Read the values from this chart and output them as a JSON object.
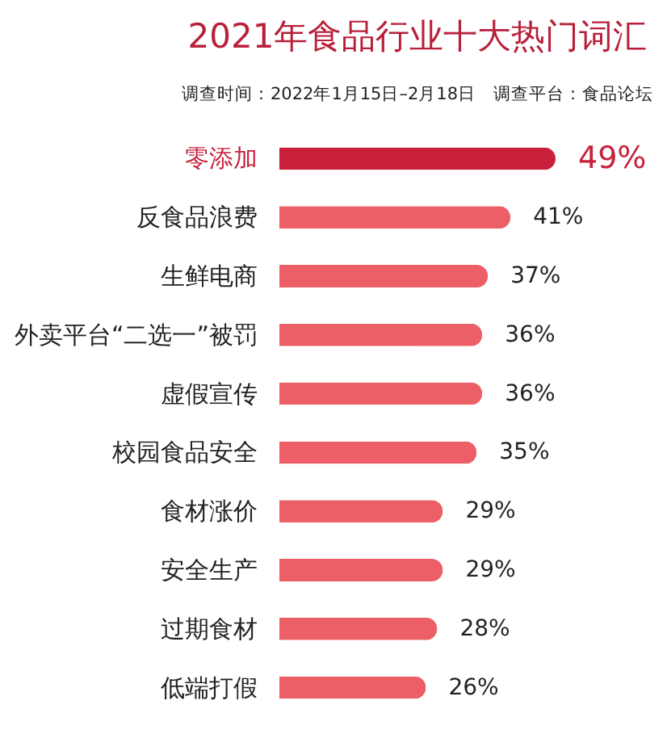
{
  "chart_data": {
    "type": "bar",
    "orientation": "horizontal",
    "title": "2021年食品行业十大热门词汇",
    "subtitle": "调查时间：2022年1月15日–2月18日　调查平台：食品论坛",
    "categories": [
      "零添加",
      "反食品浪费",
      "生鲜电商",
      "外卖平台“二选一”被罚",
      "虚假宣传",
      "校园食品安全",
      "食材涨价",
      "安全生产",
      "过期食材",
      "低端打假"
    ],
    "values": [
      49,
      41,
      37,
      36,
      36,
      35,
      29,
      29,
      28,
      26
    ],
    "value_labels": [
      "49%",
      "41%",
      "37%",
      "36%",
      "36%",
      "35%",
      "29%",
      "29%",
      "28%",
      "26%"
    ],
    "colors": [
      "#c8203a",
      "#ec5f66",
      "#ec5f66",
      "#ec5f66",
      "#ec5f66",
      "#ec5f66",
      "#ec5f66",
      "#ec5f66",
      "#ec5f66",
      "#ec5f66"
    ],
    "tick_labels": false
  }
}
